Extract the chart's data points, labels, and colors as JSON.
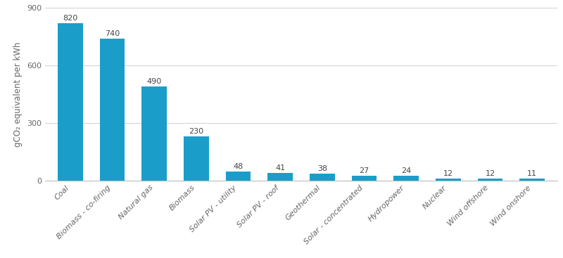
{
  "categories": [
    "Coal",
    "Biomass - co-firing",
    "Natural gas",
    "Biomass",
    "Solar PV - utility",
    "Solar PV - roof",
    "Geothermal",
    "Solar - concentrated",
    "Hydropower",
    "Nuclear",
    "Wind offshore",
    "Wind onshore"
  ],
  "values": [
    820,
    740,
    490,
    230,
    48,
    41,
    38,
    27,
    24,
    12,
    12,
    11
  ],
  "bar_color": "#1a9ec9",
  "ylabel": "gCO₂ equivalent per kWh",
  "ylim": [
    0,
    900
  ],
  "yticks": [
    0,
    300,
    600,
    900
  ],
  "background_color": "#ffffff",
  "grid_color": "#d0d0d0",
  "value_fontsize": 8,
  "ylabel_fontsize": 8.5,
  "tick_label_fontsize": 8,
  "bar_width": 0.6
}
